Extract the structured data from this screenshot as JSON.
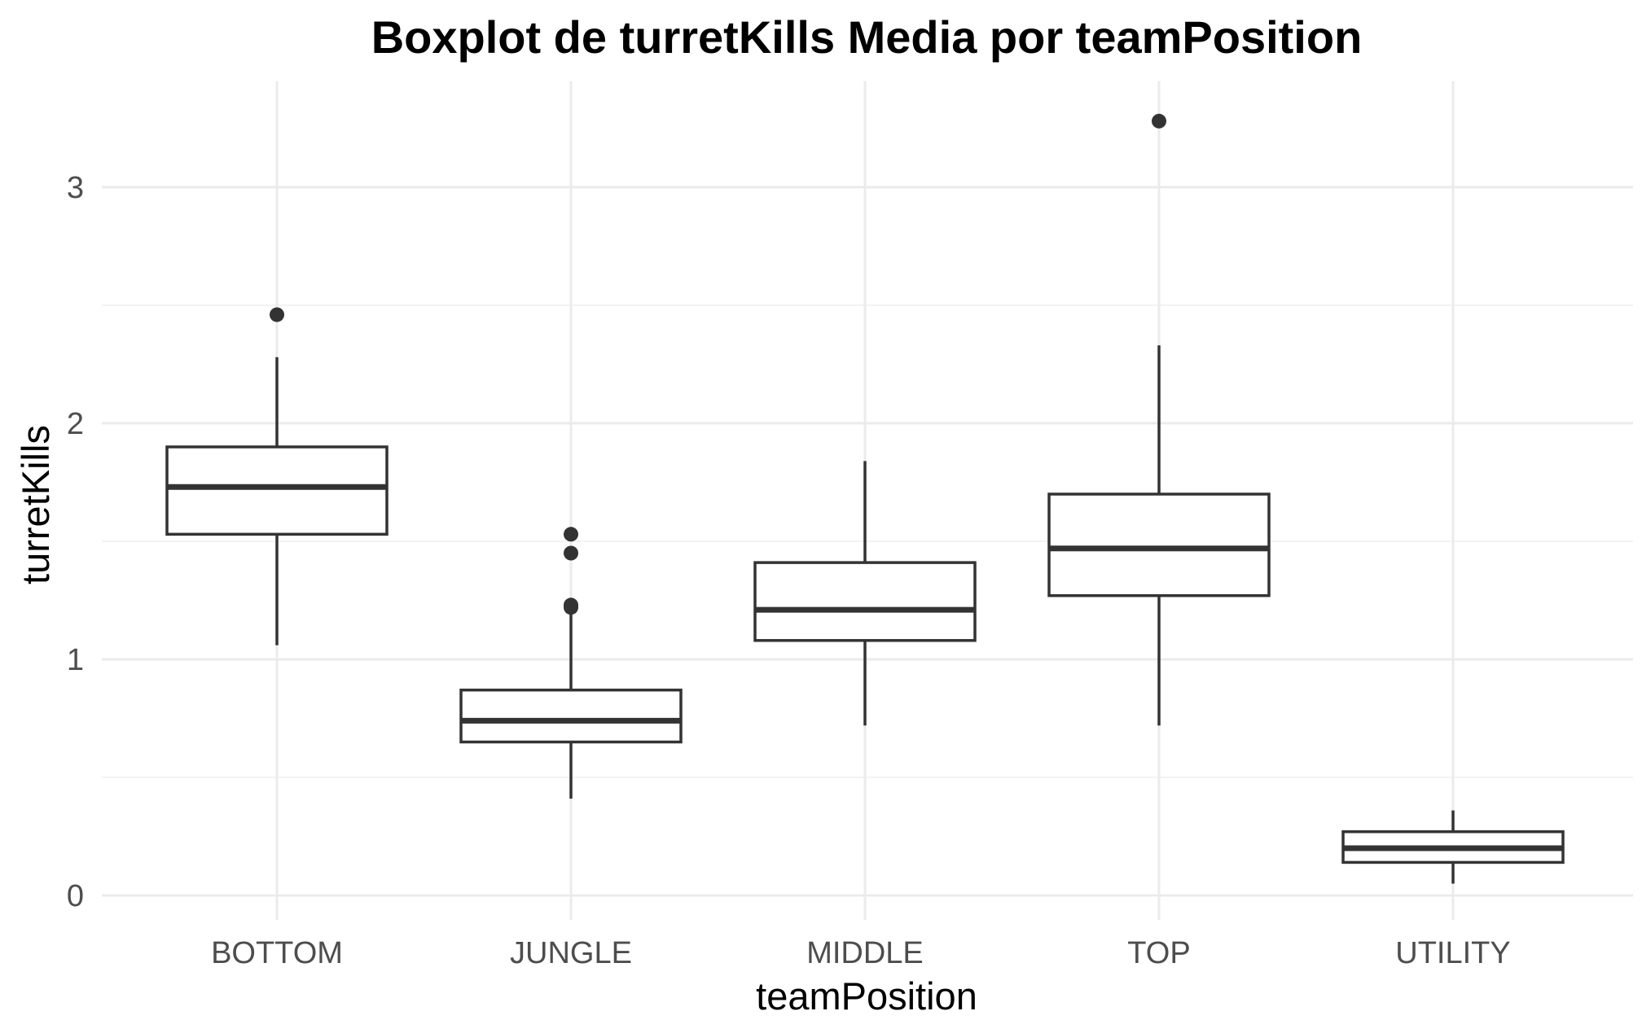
{
  "chart_data": {
    "type": "boxplot",
    "title": "Boxplot de turretKills Media por teamPosition",
    "xlabel": "teamPosition",
    "ylabel": "turretKills",
    "categories": [
      "BOTTOM",
      "JUNGLE",
      "MIDDLE",
      "TOP",
      "UTILITY"
    ],
    "yticks": [
      0,
      1,
      2,
      3
    ],
    "ylim": [
      -0.05,
      3.4
    ],
    "grid": true,
    "legend": "none",
    "colors": {
      "box_stroke": "#333333",
      "major_grid": "#ebebeb",
      "minor_grid": "#f3f3f3",
      "tick_text": "#4d4d4d",
      "title_text": "#000000"
    },
    "boxes": [
      {
        "category": "BOTTOM",
        "whisker_low": 1.06,
        "q1": 1.53,
        "median": 1.73,
        "q3": 1.9,
        "whisker_high": 2.28,
        "outliers": [
          2.46
        ]
      },
      {
        "category": "JUNGLE",
        "whisker_low": 0.41,
        "q1": 0.65,
        "median": 0.74,
        "q3": 0.87,
        "whisker_high": 1.21,
        "outliers": [
          1.53,
          1.45,
          1.23,
          1.22
        ]
      },
      {
        "category": "MIDDLE",
        "whisker_low": 0.72,
        "q1": 1.08,
        "median": 1.21,
        "q3": 1.41,
        "whisker_high": 1.84,
        "outliers": []
      },
      {
        "category": "TOP",
        "whisker_low": 0.72,
        "q1": 1.27,
        "median": 1.47,
        "q3": 1.7,
        "whisker_high": 2.33,
        "outliers": [
          3.28
        ]
      },
      {
        "category": "UTILITY",
        "whisker_low": 0.05,
        "q1": 0.14,
        "median": 0.2,
        "q3": 0.27,
        "whisker_high": 0.36,
        "outliers": []
      }
    ]
  }
}
